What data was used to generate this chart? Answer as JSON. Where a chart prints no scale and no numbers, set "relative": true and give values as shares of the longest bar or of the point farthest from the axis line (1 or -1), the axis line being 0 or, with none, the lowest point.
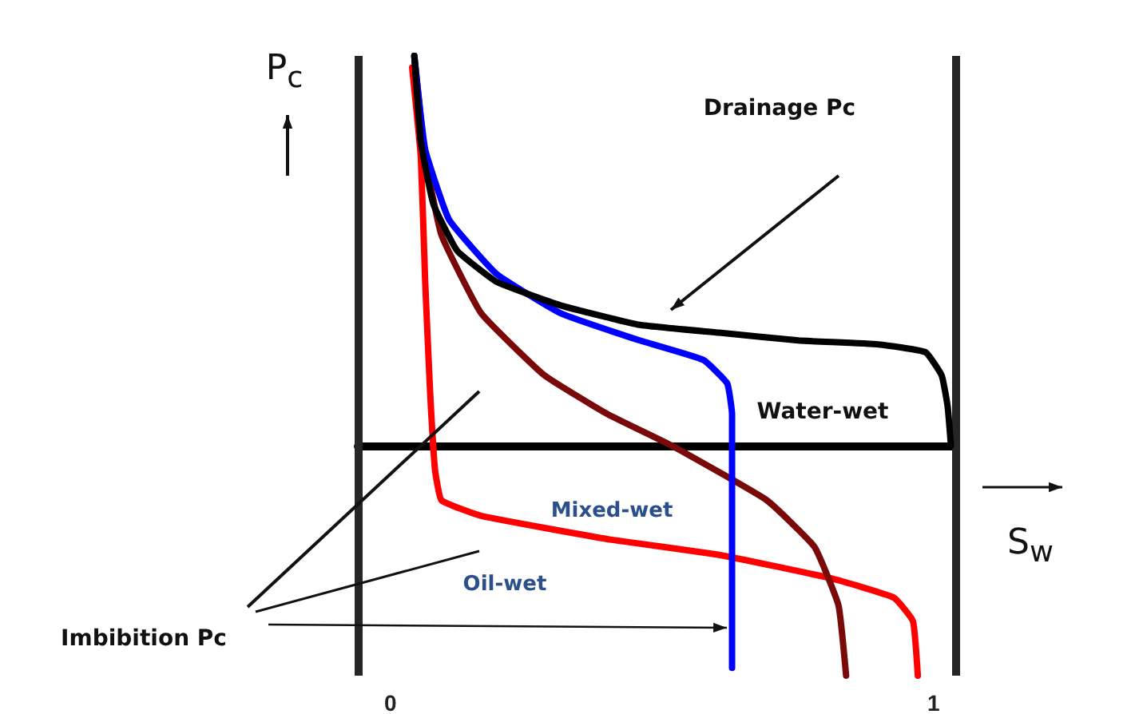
{
  "chart_data": {
    "type": "line",
    "relative": true,
    "xlabel": "S$_{w}$",
    "ylabel": "P$_{c}$",
    "xlim": [
      -0.06,
      1.04
    ],
    "xticks": [
      0,
      1
    ],
    "grid": false,
    "marker": "none",
    "line_style": "solid",
    "series": [
      {
        "color": "#000000",
        "x": [
          0.044,
          0.056,
          0.079,
          0.123,
          0.196,
          0.313,
          0.459,
          0.605,
          0.751,
          0.898,
          0.985,
          1.015,
          1.026,
          1.032
        ],
        "values": [
          1,
          0.78,
          0.62,
          0.5,
          0.42,
          0.36,
          0.31,
          0.29,
          0.27,
          0.26,
          0.24,
          0.18,
          0.1,
          0
        ]
      },
      {
        "color": "#0000ff",
        "x": [
          0.044,
          0.064,
          0.108,
          0.196,
          0.313,
          0.459,
          0.576,
          0.62,
          0.629,
          0.629,
          0.629,
          0.629
        ],
        "values": [
          1,
          0.76,
          0.58,
          0.44,
          0.34,
          0.27,
          0.22,
          0.16,
          0.08,
          0,
          -0.26,
          -0.57
        ]
      },
      {
        "color": "#7a0a0a",
        "x": [
          0.044,
          0.064,
          0.094,
          0.167,
          0.284,
          0.401,
          0.518,
          0.693,
          0.781,
          0.825,
          0.839
        ],
        "values": [
          1,
          0.74,
          0.54,
          0.34,
          0.18,
          0.08,
          0,
          -0.14,
          -0.26,
          -0.41,
          -0.59
        ]
      },
      {
        "color": "#ff0000",
        "x": [
          0.04,
          0.056,
          0.064,
          0.073,
          0.082,
          0.094,
          0.167,
          0.401,
          0.605,
          0.81,
          0.927,
          0.962,
          0.971
        ],
        "values": [
          0.97,
          0.74,
          0.42,
          0.14,
          -0.06,
          -0.14,
          -0.18,
          -0.24,
          -0.28,
          -0.34,
          -0.39,
          -0.45,
          -0.59
        ]
      }
    ],
    "ref_lines": [
      {
        "axis": "x",
        "value": -0.06,
        "color": "#262626"
      },
      {
        "axis": "x",
        "value": 1.04,
        "color": "#262626"
      }
    ],
    "annotations": [
      "Drainage Pc",
      "Water-wet",
      "Mixed-wet",
      "Oil-wet",
      "Imbibition Pc"
    ]
  }
}
